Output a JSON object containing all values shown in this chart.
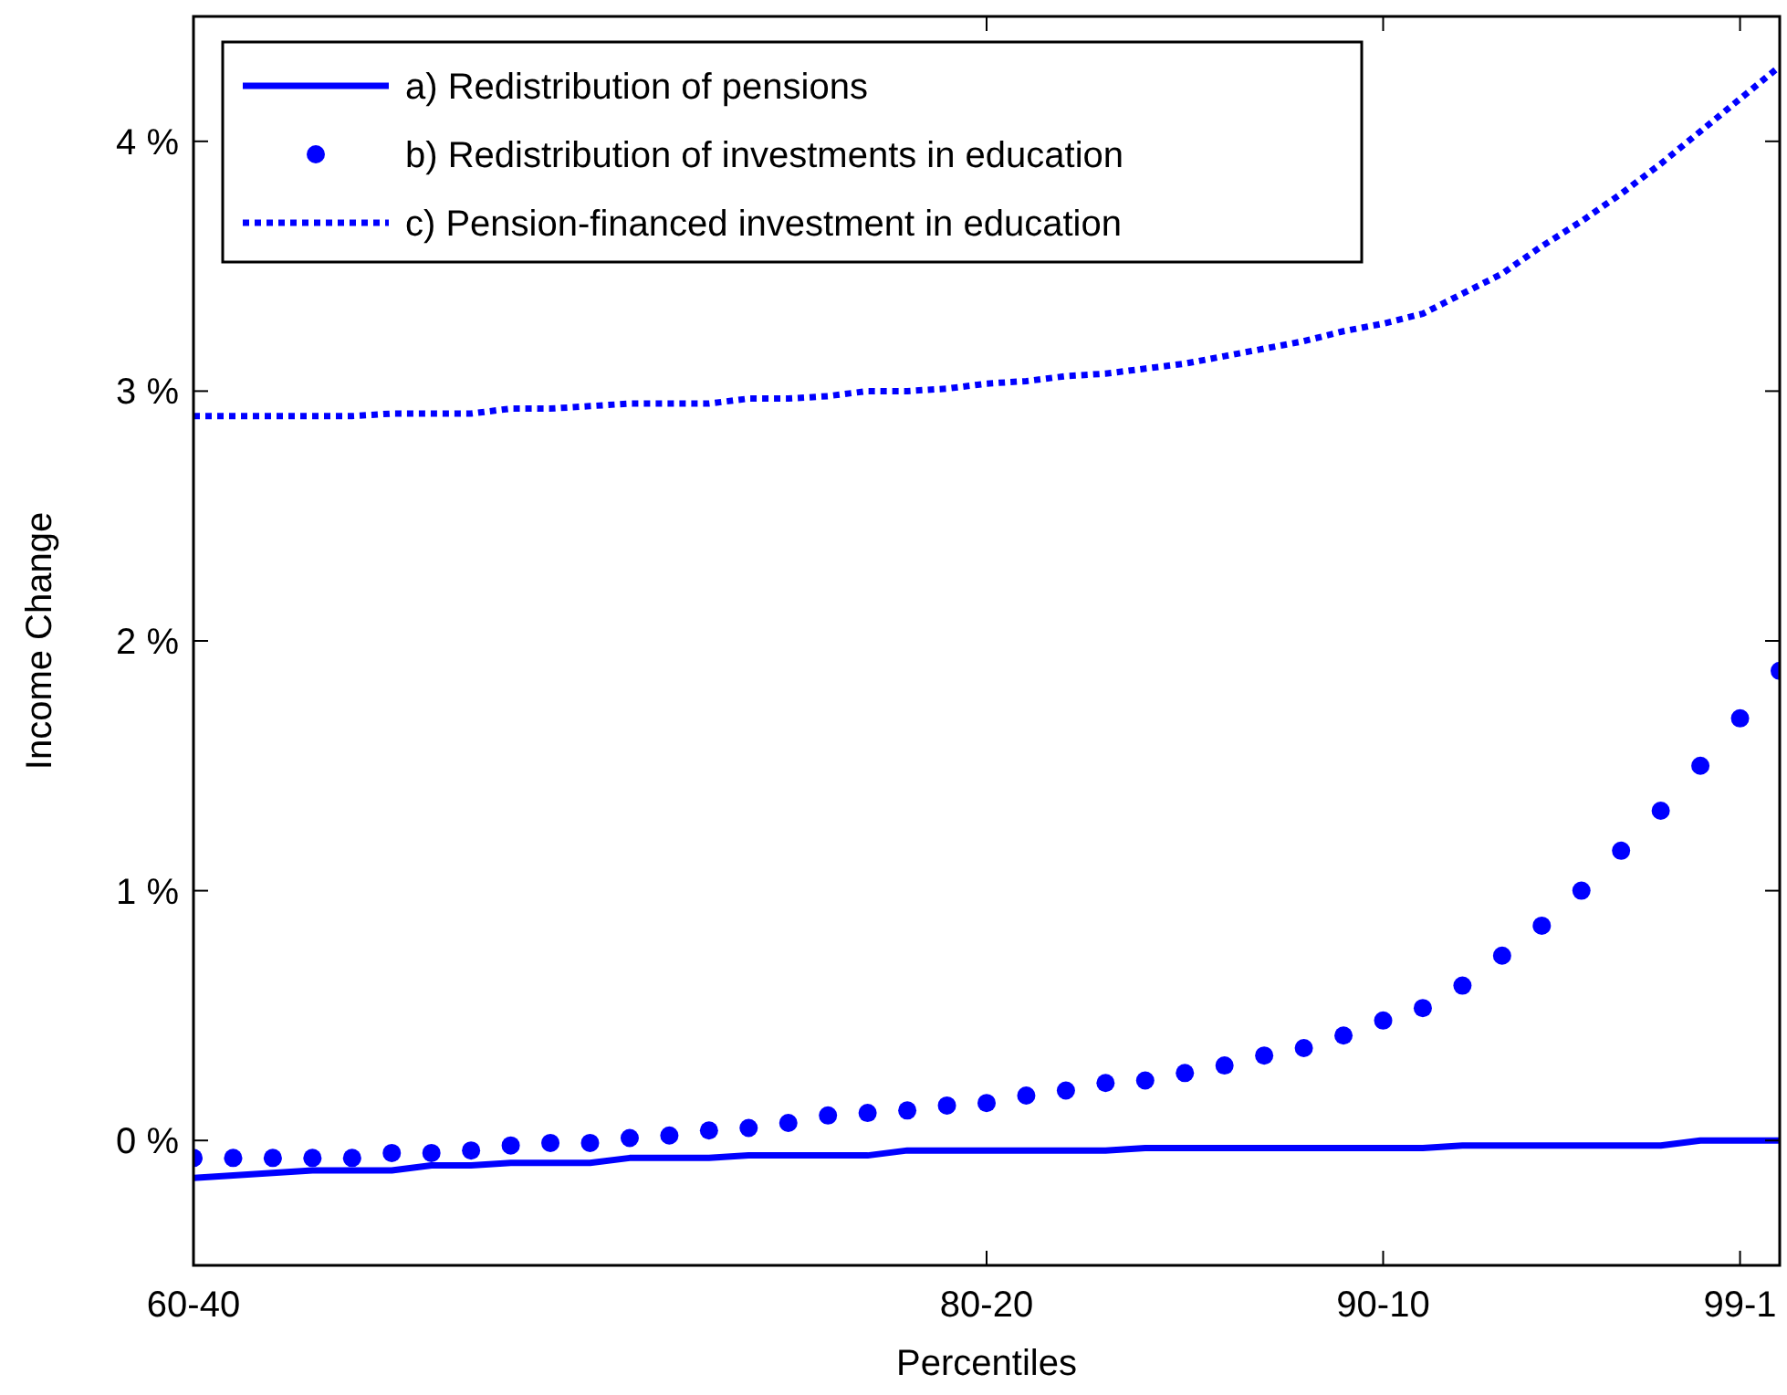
{
  "chart_data": {
    "type": "line",
    "xlabel": "Percentiles",
    "ylabel": "Income Change",
    "ylim": [
      -0.5,
      4.5
    ],
    "categories": [
      "60-40",
      null,
      null,
      null,
      null,
      null,
      null,
      null,
      null,
      null,
      null,
      null,
      null,
      null,
      null,
      null,
      null,
      null,
      null,
      null,
      "80-20",
      null,
      null,
      null,
      null,
      null,
      null,
      null,
      null,
      null,
      "90-10",
      null,
      null,
      null,
      null,
      null,
      null,
      null,
      null,
      "99-1",
      null
    ],
    "yticks": [
      {
        "value": 0,
        "label": "0 %"
      },
      {
        "value": 1,
        "label": "1 %"
      },
      {
        "value": 2,
        "label": "2 %"
      },
      {
        "value": 3,
        "label": "3 %"
      },
      {
        "value": 4,
        "label": "4 %"
      }
    ],
    "grid": false,
    "legend": "top left",
    "series": [
      {
        "name": "a) Redistribution of pensions",
        "line_style": "solid",
        "color": "#0000ff",
        "values": [
          -0.15,
          -0.14,
          -0.13,
          -0.12,
          -0.12,
          -0.12,
          -0.1,
          -0.1,
          -0.09,
          -0.09,
          -0.09,
          -0.07,
          -0.07,
          -0.07,
          -0.06,
          -0.06,
          -0.06,
          -0.06,
          -0.04,
          -0.04,
          -0.04,
          -0.04,
          -0.04,
          -0.04,
          -0.03,
          -0.03,
          -0.03,
          -0.03,
          -0.03,
          -0.03,
          -0.03,
          -0.03,
          -0.02,
          -0.02,
          -0.02,
          -0.02,
          -0.02,
          -0.02,
          0,
          0,
          0
        ]
      },
      {
        "name": "b) Redistribution of investments in education",
        "type": "scatter",
        "marker": "circle",
        "color": "#0000ff",
        "values": [
          -0.07,
          -0.07,
          -0.07,
          -0.07,
          -0.07,
          -0.05,
          -0.05,
          -0.04,
          -0.02,
          -0.01,
          -0.01,
          0.01,
          0.02,
          0.04,
          0.05,
          0.07,
          0.1,
          0.11,
          0.12,
          0.14,
          0.15,
          0.18,
          0.2,
          0.23,
          0.24,
          0.27,
          0.3,
          0.34,
          0.37,
          0.42,
          0.48,
          0.53,
          0.62,
          0.74,
          0.86,
          1.0,
          1.16,
          1.32,
          1.5,
          1.69,
          1.88
        ]
      },
      {
        "name": "c) Pension-financed investment in education",
        "line_style": "dotted",
        "color": "#0000ff",
        "values": [
          2.9,
          2.9,
          2.9,
          2.9,
          2.9,
          2.91,
          2.91,
          2.91,
          2.93,
          2.93,
          2.94,
          2.95,
          2.95,
          2.95,
          2.97,
          2.97,
          2.98,
          3.0,
          3.0,
          3.01,
          3.03,
          3.04,
          3.06,
          3.07,
          3.09,
          3.11,
          3.14,
          3.17,
          3.2,
          3.24,
          3.27,
          3.31,
          3.39,
          3.47,
          3.58,
          3.68,
          3.79,
          3.91,
          4.04,
          4.17,
          4.3
        ]
      }
    ]
  }
}
